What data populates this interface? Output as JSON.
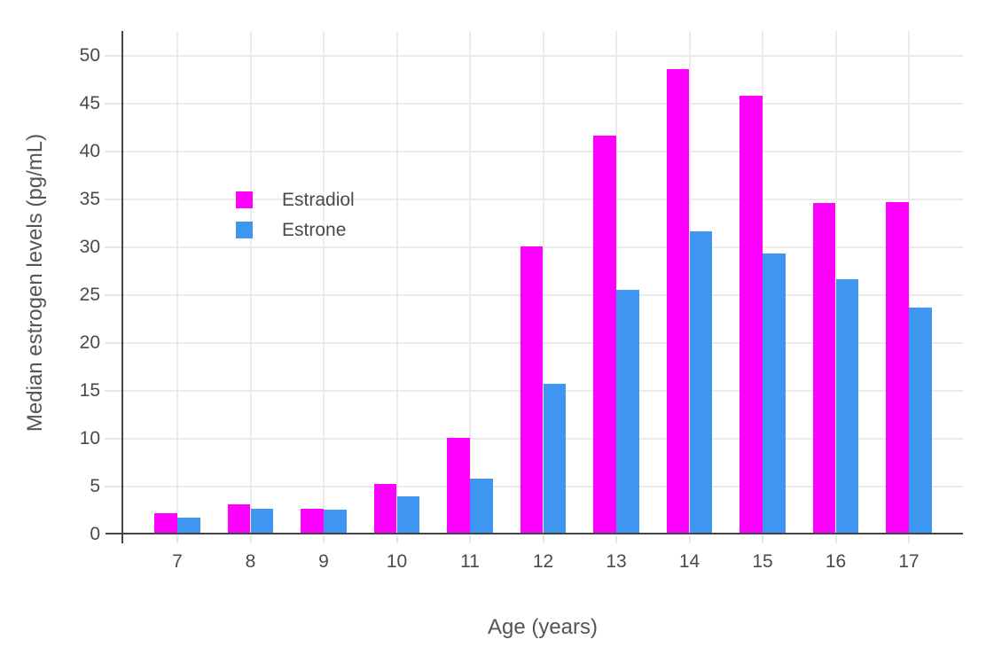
{
  "figure": {
    "title": ""
  },
  "colors": {
    "estradiol": "#FF00FF",
    "estrone": "#3E96F1",
    "axis_line": "#444444",
    "gridline": "#EBEBEB",
    "tick_mark": "#E6E6E6",
    "tick_text": "#4A4A4A",
    "title_text": "#555555",
    "background": "#FFFFFF"
  },
  "chart_data": {
    "type": "bar",
    "title": "",
    "xlabel": "Age (years)",
    "ylabel": "Median estrogen levels (pg/mL)",
    "categories": [
      "7",
      "8",
      "9",
      "10",
      "11",
      "12",
      "13",
      "14",
      "15",
      "16",
      "17"
    ],
    "series": [
      {
        "name": "Estradiol",
        "color": "#FF00FF",
        "values": [
          2.2,
          3.1,
          2.7,
          5.3,
          10.1,
          30.1,
          41.6,
          48.6,
          45.8,
          34.6,
          34.7
        ]
      },
      {
        "name": "Estrone",
        "color": "#3E96F1",
        "values": [
          1.8,
          2.7,
          2.6,
          4.0,
          5.8,
          15.7,
          25.5,
          31.6,
          29.3,
          26.6,
          23.7
        ]
      }
    ],
    "yticks": [
      0,
      5,
      10,
      15,
      20,
      25,
      30,
      35,
      40,
      45,
      50
    ],
    "ylim": [
      0,
      52.6
    ],
    "grid": true,
    "bar_mode": "grouped",
    "legend_position": "inset-top-left"
  }
}
